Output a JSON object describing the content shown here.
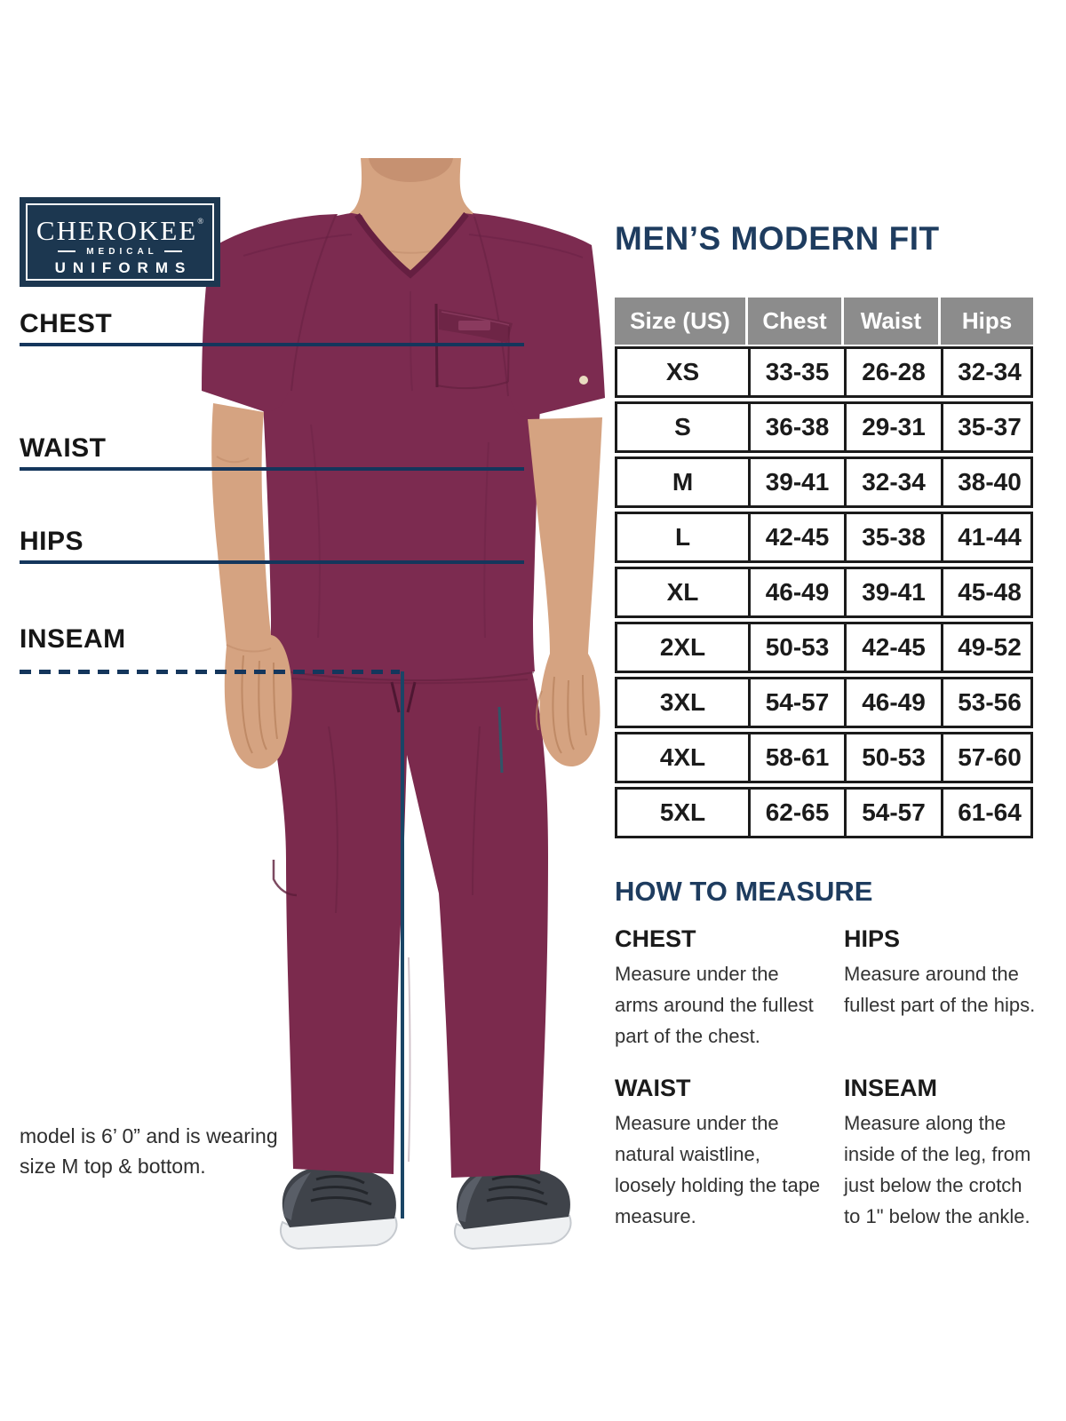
{
  "brand": {
    "name": "CHEROKEE",
    "reg": "®",
    "line2": "MEDICAL",
    "line3": "UNIFORMS"
  },
  "title": "MEN’S MODERN FIT",
  "measure_labels": {
    "chest": "CHEST",
    "waist": "WAIST",
    "hips": "HIPS",
    "inseam": "INSEAM"
  },
  "size_table": {
    "headers": [
      "Size (US)",
      "Chest",
      "Waist",
      "Hips"
    ],
    "rows": [
      [
        "XS",
        "33-35",
        "26-28",
        "32-34"
      ],
      [
        "S",
        "36-38",
        "29-31",
        "35-37"
      ],
      [
        "M",
        "39-41",
        "32-34",
        "38-40"
      ],
      [
        "L",
        "42-45",
        "35-38",
        "41-44"
      ],
      [
        "XL",
        "46-49",
        "39-41",
        "45-48"
      ],
      [
        "2XL",
        "50-53",
        "42-45",
        "49-52"
      ],
      [
        "3XL",
        "54-57",
        "46-49",
        "53-56"
      ],
      [
        "4XL",
        "58-61",
        "50-53",
        "57-60"
      ],
      [
        "5XL",
        "62-65",
        "54-57",
        "61-64"
      ]
    ]
  },
  "how_to_measure": {
    "title": "HOW TO MEASURE",
    "sections": [
      {
        "heading": "CHEST",
        "text": "Measure under the arms around the fullest part of the chest."
      },
      {
        "heading": "HIPS",
        "text": "Measure around the fullest part of the hips."
      },
      {
        "heading": "WAIST",
        "text": "Measure under the natural waistline, loosely holding the tape measure."
      },
      {
        "heading": "INSEAM",
        "text": "Measure along the inside of the leg, from just below the crotch to 1\" below the ankle."
      }
    ]
  },
  "model_note": {
    "line1": "model is 6’ 0” and is wearing",
    "line2": "size M top & bottom."
  },
  "colors": {
    "scrub_wine": "#7c2b50",
    "scrub_wine_dark": "#5e1e3c",
    "skin": "#d5a381",
    "navy_line": "#14365c",
    "navy_text": "#1e3c5f",
    "logo_navy": "#1c3750",
    "table_header_gray": "#8c8c8c",
    "table_text": "#1b1b1b"
  }
}
